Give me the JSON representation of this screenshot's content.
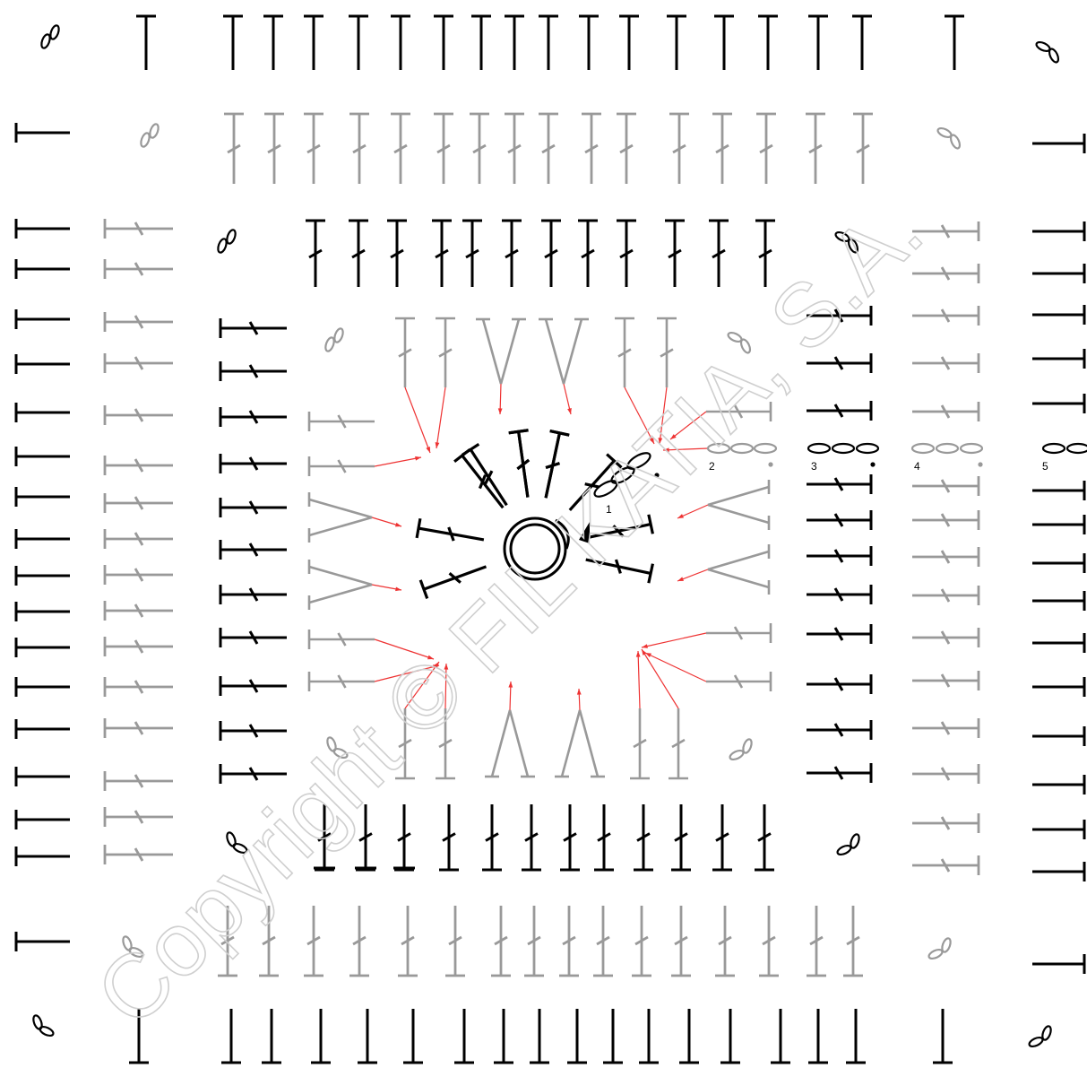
{
  "diagram": {
    "type": "crochet-chart",
    "stitch_legend_names": [
      "magic-ring",
      "chain",
      "double-crochet",
      "back-post-dc",
      "v-stitch",
      "slip-stitch"
    ],
    "colors": {
      "dark": "#000000",
      "light": "#999999",
      "arrow": "#ee3333"
    },
    "rounds": [
      {
        "label": "1",
        "color": "dark"
      },
      {
        "label": "2",
        "color": "light"
      },
      {
        "label": "3",
        "color": "dark"
      },
      {
        "label": "4",
        "color": "light"
      },
      {
        "label": "5",
        "color": "dark"
      }
    ],
    "watermark": "Copyright © FIL KATIA, S.A."
  }
}
